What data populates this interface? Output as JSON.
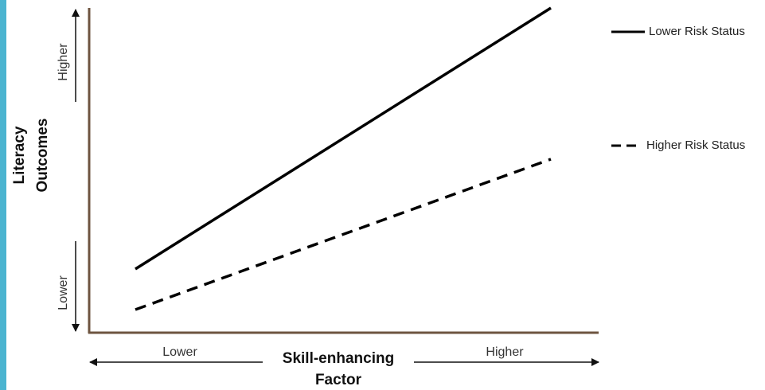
{
  "y_axis": {
    "title_lines": [
      "Literacy",
      "Outcomes"
    ],
    "high": "Higher",
    "low": "Lower"
  },
  "x_axis": {
    "title_lines": [
      "Skill-enhancing",
      "Factor"
    ],
    "low": "Lower",
    "high": "Higher"
  },
  "legend": [
    {
      "label": "Lower Risk Status"
    },
    {
      "label": "Higher Risk Status"
    }
  ]
}
